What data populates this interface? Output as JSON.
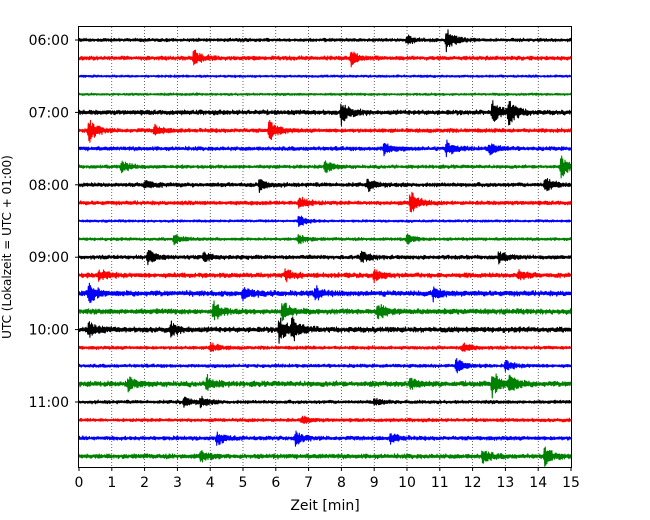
{
  "chart_data": {
    "type": "line",
    "description_kind": "helicorder",
    "xlabel": "Zeit  [min]",
    "ylabel": "UTC (Lokalzeit = UTC + 01:00)",
    "xlim": [
      0,
      15
    ],
    "x_ticks": [
      0,
      1,
      2,
      3,
      4,
      5,
      6,
      7,
      8,
      9,
      10,
      11,
      12,
      13,
      14,
      15
    ],
    "y_tick_labels": [
      "06:00",
      "07:00",
      "08:00",
      "09:00",
      "10:00",
      "11:00"
    ],
    "grid": "vertical-dotted",
    "legend": "none",
    "colors": [
      "#000000",
      "#ff0000",
      "#0000ff",
      "#008000"
    ],
    "trace_interval_min": 15,
    "traces": [
      {
        "start": "06:00",
        "color": "#000000",
        "noise": 0.25,
        "events": [
          {
            "x": 11.2,
            "amp": 1.0
          },
          {
            "x": 10.0,
            "amp": 0.35
          }
        ]
      },
      {
        "start": "06:15",
        "color": "#ff0000",
        "noise": 0.3,
        "events": [
          {
            "x": 3.5,
            "amp": 0.7
          },
          {
            "x": 8.3,
            "amp": 0.6
          }
        ]
      },
      {
        "start": "06:30",
        "color": "#0000ff",
        "noise": 0.18,
        "events": []
      },
      {
        "start": "06:45",
        "color": "#008000",
        "noise": 0.18,
        "events": []
      },
      {
        "start": "07:00",
        "color": "#000000",
        "noise": 0.35,
        "events": [
          {
            "x": 8.0,
            "amp": 0.9
          },
          {
            "x": 12.6,
            "amp": 0.9
          },
          {
            "x": 13.1,
            "amp": 1.0
          }
        ]
      },
      {
        "start": "07:15",
        "color": "#ff0000",
        "noise": 0.3,
        "events": [
          {
            "x": 0.3,
            "amp": 1.0
          },
          {
            "x": 5.8,
            "amp": 0.9
          },
          {
            "x": 2.3,
            "amp": 0.4
          }
        ]
      },
      {
        "start": "07:30",
        "color": "#0000ff",
        "noise": 0.3,
        "events": [
          {
            "x": 11.2,
            "amp": 0.6
          },
          {
            "x": 12.5,
            "amp": 0.5
          },
          {
            "x": 9.3,
            "amp": 0.5
          }
        ]
      },
      {
        "start": "07:45",
        "color": "#008000",
        "noise": 0.25,
        "events": [
          {
            "x": 1.3,
            "amp": 0.5
          },
          {
            "x": 7.5,
            "amp": 0.5
          },
          {
            "x": 14.7,
            "amp": 0.9
          }
        ]
      },
      {
        "start": "08:00",
        "color": "#000000",
        "noise": 0.3,
        "events": [
          {
            "x": 2.0,
            "amp": 0.45
          },
          {
            "x": 5.5,
            "amp": 0.5
          },
          {
            "x": 8.8,
            "amp": 0.45
          },
          {
            "x": 14.2,
            "amp": 0.6
          }
        ]
      },
      {
        "start": "08:15",
        "color": "#ff0000",
        "noise": 0.3,
        "events": [
          {
            "x": 6.7,
            "amp": 0.6
          },
          {
            "x": 10.1,
            "amp": 1.0
          }
        ]
      },
      {
        "start": "08:30",
        "color": "#0000ff",
        "noise": 0.18,
        "events": [
          {
            "x": 6.7,
            "amp": 0.5
          }
        ]
      },
      {
        "start": "08:45",
        "color": "#008000",
        "noise": 0.22,
        "events": [
          {
            "x": 2.9,
            "amp": 0.4
          },
          {
            "x": 6.7,
            "amp": 0.4
          },
          {
            "x": 10.0,
            "amp": 0.4
          }
        ]
      },
      {
        "start": "09:00",
        "color": "#000000",
        "noise": 0.3,
        "events": [
          {
            "x": 2.1,
            "amp": 0.6
          },
          {
            "x": 3.8,
            "amp": 0.4
          },
          {
            "x": 8.6,
            "amp": 0.45
          },
          {
            "x": 12.8,
            "amp": 0.45
          }
        ]
      },
      {
        "start": "09:15",
        "color": "#ff0000",
        "noise": 0.35,
        "events": [
          {
            "x": 0.6,
            "amp": 0.5
          },
          {
            "x": 6.3,
            "amp": 0.5
          },
          {
            "x": 9.0,
            "amp": 0.5
          },
          {
            "x": 13.4,
            "amp": 0.4
          }
        ]
      },
      {
        "start": "09:30",
        "color": "#0000ff",
        "noise": 0.4,
        "events": [
          {
            "x": 0.3,
            "amp": 0.8
          },
          {
            "x": 5.0,
            "amp": 0.6
          },
          {
            "x": 7.2,
            "amp": 0.6
          },
          {
            "x": 10.8,
            "amp": 0.6
          }
        ]
      },
      {
        "start": "09:45",
        "color": "#008000",
        "noise": 0.4,
        "events": [
          {
            "x": 4.1,
            "amp": 0.8
          },
          {
            "x": 6.2,
            "amp": 0.8
          },
          {
            "x": 9.1,
            "amp": 0.7
          }
        ]
      },
      {
        "start": "10:00",
        "color": "#000000",
        "noise": 0.4,
        "events": [
          {
            "x": 0.3,
            "amp": 0.6
          },
          {
            "x": 6.1,
            "amp": 1.0
          },
          {
            "x": 6.5,
            "amp": 0.9
          },
          {
            "x": 2.8,
            "amp": 0.5
          }
        ]
      },
      {
        "start": "10:15",
        "color": "#ff0000",
        "noise": 0.25,
        "events": [
          {
            "x": 4.0,
            "amp": 0.4
          },
          {
            "x": 11.7,
            "amp": 0.4
          }
        ]
      },
      {
        "start": "10:30",
        "color": "#0000ff",
        "noise": 0.25,
        "events": [
          {
            "x": 11.5,
            "amp": 0.6
          },
          {
            "x": 13.0,
            "amp": 0.4
          }
        ]
      },
      {
        "start": "10:45",
        "color": "#008000",
        "noise": 0.4,
        "events": [
          {
            "x": 1.5,
            "amp": 0.5
          },
          {
            "x": 3.9,
            "amp": 0.6
          },
          {
            "x": 10.1,
            "amp": 0.5
          },
          {
            "x": 12.6,
            "amp": 1.0
          },
          {
            "x": 13.1,
            "amp": 0.7
          }
        ]
      },
      {
        "start": "11:00",
        "color": "#000000",
        "noise": 0.25,
        "events": [
          {
            "x": 3.2,
            "amp": 0.4
          },
          {
            "x": 3.7,
            "amp": 0.4
          },
          {
            "x": 9.0,
            "amp": 0.3
          }
        ]
      },
      {
        "start": "11:15",
        "color": "#ff0000",
        "noise": 0.25,
        "events": [
          {
            "x": 6.8,
            "amp": 0.3
          }
        ]
      },
      {
        "start": "11:30",
        "color": "#0000ff",
        "noise": 0.3,
        "events": [
          {
            "x": 4.2,
            "amp": 0.5
          },
          {
            "x": 6.6,
            "amp": 0.55
          },
          {
            "x": 9.5,
            "amp": 0.4
          }
        ]
      },
      {
        "start": "11:45",
        "color": "#008000",
        "noise": 0.35,
        "events": [
          {
            "x": 3.7,
            "amp": 0.4
          },
          {
            "x": 12.3,
            "amp": 0.55
          },
          {
            "x": 14.2,
            "amp": 0.7
          }
        ]
      }
    ]
  }
}
